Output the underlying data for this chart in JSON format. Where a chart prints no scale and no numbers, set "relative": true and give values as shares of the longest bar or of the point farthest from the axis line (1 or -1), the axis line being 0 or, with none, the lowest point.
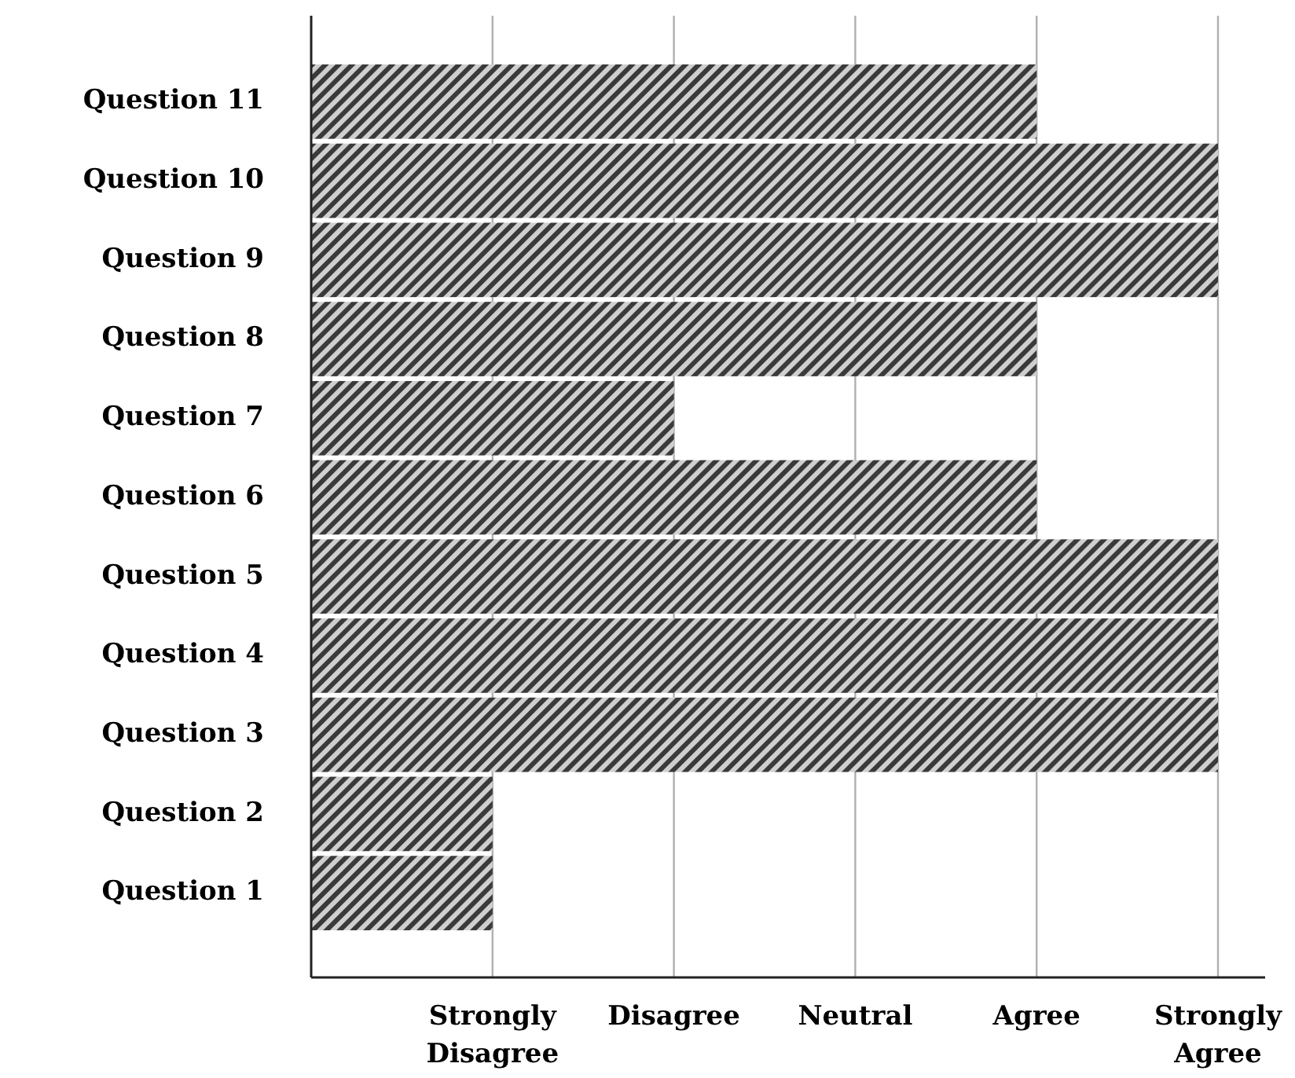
{
  "chart_data": {
    "type": "bar",
    "orientation": "horizontal",
    "relative": true,
    "categories": [
      "Question 11",
      "Question 10",
      "Question 9",
      "Question 8",
      "Question 7",
      "Question 6",
      "Question 5",
      "Question 4",
      "Question 3",
      "Question 2",
      "Question 1"
    ],
    "values": [
      0.8,
      1,
      1,
      0.8,
      0.4,
      0.8,
      1,
      1,
      1,
      0.2,
      0.2
    ],
    "color": "#3a3a3a",
    "annotations": [
      "Strongly Disagree",
      "Disagree",
      "Neutral",
      "Agree",
      "Strongly Agree"
    ],
    "grid": "x"
  }
}
